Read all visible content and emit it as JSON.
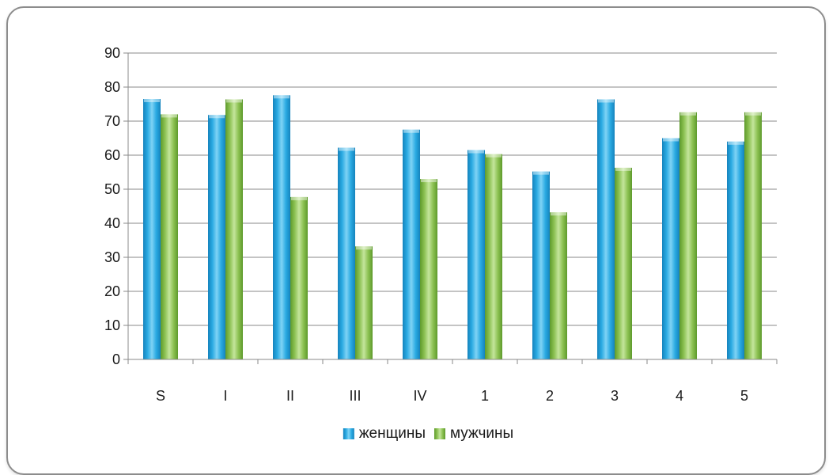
{
  "chart_data": {
    "type": "bar",
    "categories": [
      "S",
      "I",
      "II",
      "III",
      "IV",
      "1",
      "2",
      "3",
      "4",
      "5"
    ],
    "series": [
      {
        "name": "женщины",
        "color": "#29a9e1",
        "values": [
          76.5,
          71.8,
          77.6,
          62.2,
          67.5,
          61.5,
          55.2,
          76.4,
          65.0,
          64.0
        ]
      },
      {
        "name": "мужчины",
        "color": "#8cc152",
        "values": [
          72.0,
          76.4,
          47.7,
          33.2,
          53.0,
          60.3,
          43.2,
          56.3,
          72.6,
          72.6
        ]
      }
    ],
    "yticks": [
      "0",
      "10",
      "20",
      "30",
      "40",
      "50",
      "60",
      "70",
      "80",
      "90"
    ],
    "ylim": [
      0,
      90
    ],
    "ystep": 10,
    "grid": true,
    "legend_position": "bottom",
    "title": "",
    "xlabel": "",
    "ylabel": ""
  }
}
